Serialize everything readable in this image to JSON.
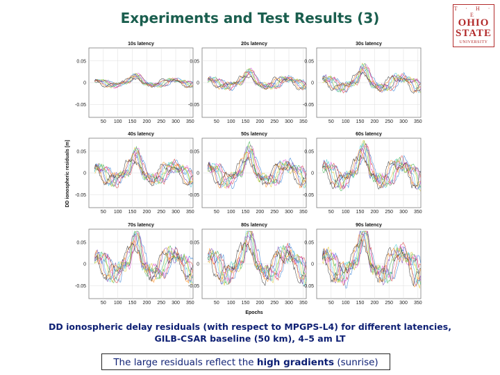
{
  "slide": {
    "title": "Experiments and Test Results (3)",
    "logo": {
      "top": "T · H · E",
      "line1": "OHIO",
      "line2": "STATE",
      "line3": "UNIVERSITY"
    },
    "caption_line1": "DD ionospheric delay residuals (with respect to MPGPS-L4) for different latencies,",
    "caption_line2": "GILB-CSAR baseline (50 km), 4–5 am LT",
    "note_before": "The large residuals reflect the ",
    "note_emph": "high gradients",
    "note_after": " (sunrise)"
  },
  "chart_data": {
    "type": "line",
    "ylabel": "DD ionospheric residuals [m]",
    "xlabel": "Epochs",
    "xlim": [
      0,
      360
    ],
    "ylim": [
      -0.08,
      0.08
    ],
    "xticks": [
      50,
      100,
      150,
      200,
      250,
      300,
      350
    ],
    "yticks": [
      0.05,
      0,
      -0.05
    ],
    "ytick_labels": [
      "0.05",
      "0",
      "-0.05"
    ],
    "grid": true,
    "series_colors": [
      "#2b7bd6",
      "#d63b3b",
      "#e04fd8",
      "#35b04a",
      "#e0c52a",
      "#3fc9d6",
      "#7a3fb0",
      "#ff8c1a",
      "#333333"
    ],
    "panels": [
      {
        "title": "10s latency",
        "amplitude": 0.012
      },
      {
        "title": "20s latency",
        "amplitude": 0.018
      },
      {
        "title": "30s latency",
        "amplitude": 0.024
      },
      {
        "title": "40s latency",
        "amplitude": 0.032
      },
      {
        "title": "50s latency",
        "amplitude": 0.036
      },
      {
        "title": "60s latency",
        "amplitude": 0.04
      },
      {
        "title": "70s latency",
        "amplitude": 0.045
      },
      {
        "title": "80s latency",
        "amplitude": 0.048
      },
      {
        "title": "90s latency",
        "amplitude": 0.052
      }
    ]
  }
}
